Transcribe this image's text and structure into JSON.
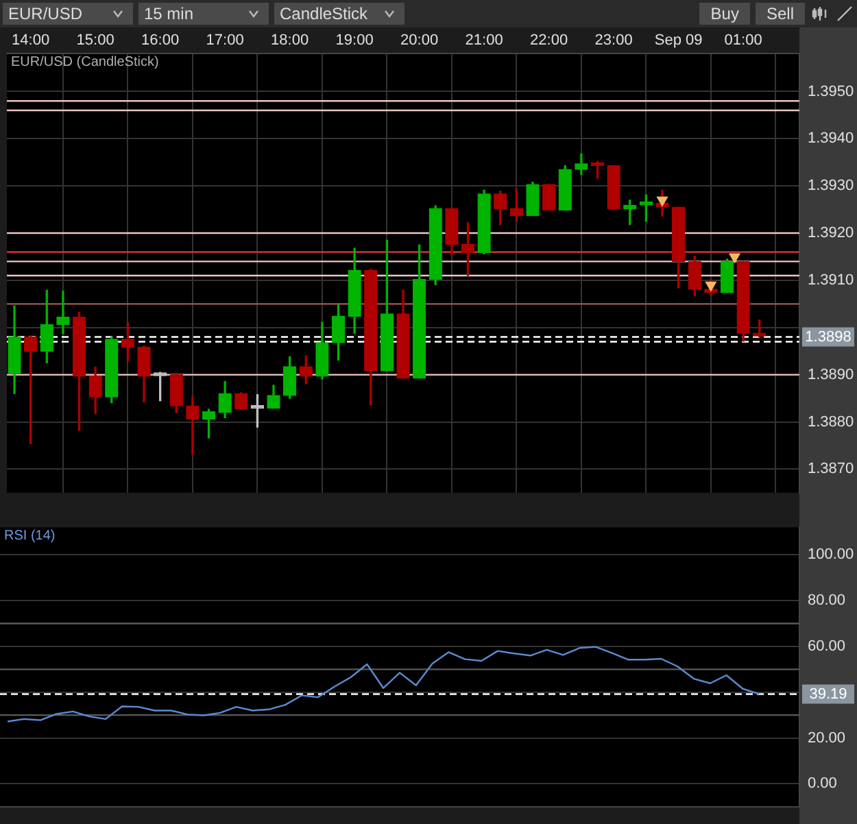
{
  "chart_data": [
    {
      "type": "candlestick",
      "title": "EUR/USD (CandleStick)",
      "annotations": [
        "EUR/USD",
        "15 min",
        "CandleStick",
        "Buy",
        "Sell"
      ],
      "xlim": [
        "--09-08T13:38",
        "--09-09T01:52"
      ],
      "xticks": [
        {
          "value": "--09-08T14:00",
          "label": "14:00"
        },
        {
          "value": "--09-08T15:00",
          "label": "15:00"
        },
        {
          "value": "--09-08T16:00",
          "label": "16:00"
        },
        {
          "value": "--09-08T17:00",
          "label": "17:00"
        },
        {
          "value": "--09-08T18:00",
          "label": "18:00"
        },
        {
          "value": "--09-08T19:00",
          "label": "19:00"
        },
        {
          "value": "--09-08T20:00",
          "label": "20:00"
        },
        {
          "value": "--09-08T21:00",
          "label": "21:00"
        },
        {
          "value": "--09-08T22:00",
          "label": "22:00"
        },
        {
          "value": "--09-08T23:00",
          "label": "23:00"
        },
        {
          "value": "--09-09T00:00",
          "label": "Sep 09"
        },
        {
          "value": "--09-09T01:00",
          "label": "01:00"
        }
      ],
      "ylim": [
        1.3865,
        1.3958
      ],
      "yticks": [
        {
          "value": 1.387,
          "label": "1.3870"
        },
        {
          "value": 1.388,
          "label": "1.3880"
        },
        {
          "value": 1.389,
          "label": "1.3890"
        },
        {
          "value": 1.39,
          "label": null
        },
        {
          "value": 1.391,
          "label": "1.3910"
        },
        {
          "value": 1.392,
          "label": "1.3920"
        },
        {
          "value": 1.393,
          "label": "1.3930"
        },
        {
          "value": 1.394,
          "label": "1.3940"
        },
        {
          "value": 1.395,
          "label": "1.3950"
        }
      ],
      "grid": true,
      "series": [
        {
          "type": "candlestick",
          "x": [
            "--09-08T13:45",
            "--09-08T14:00",
            "--09-08T14:15",
            "--09-08T14:30",
            "--09-08T14:45",
            "--09-08T15:00",
            "--09-08T15:15",
            "--09-08T15:30",
            "--09-08T15:45",
            "--09-08T16:00",
            "--09-08T16:15",
            "--09-08T16:30",
            "--09-08T16:45",
            "--09-08T17:00",
            "--09-08T17:15",
            "--09-08T17:30",
            "--09-08T17:45",
            "--09-08T18:00",
            "--09-08T18:15",
            "--09-08T18:30",
            "--09-08T18:45",
            "--09-08T19:00",
            "--09-08T19:15",
            "--09-08T19:30",
            "--09-08T19:45",
            "--09-08T20:00",
            "--09-08T20:15",
            "--09-08T20:30",
            "--09-08T20:45",
            "--09-08T21:00",
            "--09-08T21:15",
            "--09-08T21:30",
            "--09-08T21:45",
            "--09-08T22:00",
            "--09-08T22:15",
            "--09-08T22:30",
            "--09-08T22:45",
            "--09-08T23:00",
            "--09-08T23:15",
            "--09-08T23:30",
            "--09-08T23:45",
            "--09-09T00:00",
            "--09-09T00:15",
            "--09-09T00:30",
            "--09-09T00:45",
            "--09-09T01:00",
            "--09-09T01:15"
          ],
          "ohlc": [
            [
              1.38903,
              1.39046,
              1.3886,
              1.3898
            ],
            [
              1.3898,
              1.38982,
              1.38754,
              1.3895
            ],
            [
              1.3895,
              1.39079,
              1.38925,
              1.39006
            ],
            [
              1.39006,
              1.39077,
              1.38987,
              1.39022
            ],
            [
              1.39022,
              1.39032,
              1.38782,
              1.38897
            ],
            [
              1.38897,
              1.38916,
              1.38818,
              1.38853
            ],
            [
              1.38853,
              1.3898,
              1.38841,
              1.38975
            ],
            [
              1.38975,
              1.3901,
              1.38928,
              1.38958
            ],
            [
              1.38958,
              1.38961,
              1.38842,
              1.38897
            ],
            [
              1.38898,
              1.38905,
              1.38845,
              1.38898
            ],
            [
              1.389,
              1.38903,
              1.3882,
              1.38834
            ],
            [
              1.38834,
              1.38853,
              1.38731,
              1.38806
            ],
            [
              1.38806,
              1.38827,
              1.38766,
              1.38822
            ],
            [
              1.3882,
              1.38886,
              1.38809,
              1.3886
            ],
            [
              1.3886,
              1.38862,
              1.38827,
              1.38827
            ],
            [
              1.38829,
              1.38858,
              1.38789,
              1.38829
            ],
            [
              1.38829,
              1.38878,
              1.38829,
              1.38856
            ],
            [
              1.38856,
              1.38938,
              1.3885,
              1.38917
            ],
            [
              1.38917,
              1.3894,
              1.38881,
              1.38897
            ],
            [
              1.38897,
              1.39011,
              1.38891,
              1.38968
            ],
            [
              1.38968,
              1.39048,
              1.38931,
              1.39024
            ],
            [
              1.39024,
              1.39168,
              1.38988,
              1.39121
            ],
            [
              1.39121,
              1.39124,
              1.38836,
              1.38908
            ],
            [
              1.38908,
              1.39185,
              1.38908,
              1.39029
            ],
            [
              1.39029,
              1.39079,
              1.38893,
              1.38893
            ],
            [
              1.38893,
              1.39175,
              1.38893,
              1.39102
            ],
            [
              1.39102,
              1.39258,
              1.39091,
              1.39252
            ],
            [
              1.39252,
              1.39252,
              1.39154,
              1.39176
            ],
            [
              1.39176,
              1.39222,
              1.3911,
              1.39159
            ],
            [
              1.39159,
              1.39291,
              1.39156,
              1.39283
            ],
            [
              1.39283,
              1.39289,
              1.39218,
              1.39251
            ],
            [
              1.39252,
              1.39293,
              1.39225,
              1.39237
            ],
            [
              1.39237,
              1.39308,
              1.39237,
              1.39303
            ],
            [
              1.39303,
              1.39303,
              1.39249,
              1.39249
            ],
            [
              1.39249,
              1.39343,
              1.39249,
              1.39335
            ],
            [
              1.39335,
              1.39368,
              1.39324,
              1.39347
            ],
            [
              1.39347,
              1.39352,
              1.39316,
              1.39343
            ],
            [
              1.39343,
              1.39343,
              1.39251,
              1.39251
            ],
            [
              1.39251,
              1.3927,
              1.39218,
              1.39259
            ],
            [
              1.3926,
              1.39281,
              1.39225,
              1.39264
            ],
            [
              1.39263,
              1.39291,
              1.39236,
              1.39255
            ],
            [
              1.39255,
              1.39255,
              1.39084,
              1.3914
            ],
            [
              1.3914,
              1.39151,
              1.39067,
              1.39081
            ],
            [
              1.39081,
              1.39102,
              1.39068,
              1.39074
            ],
            [
              1.39074,
              1.39145,
              1.39074,
              1.3914
            ],
            [
              1.3914,
              1.3914,
              1.38971,
              1.38988
            ],
            [
              1.38988,
              1.39016,
              1.3898,
              1.38982
            ]
          ],
          "colors": [
            "#00b400",
            "#b00000",
            "#00b400",
            "#00b400",
            "#b00000",
            "#b00000",
            "#00b400",
            "#b00000",
            "#b00000",
            "#c0c0c0",
            "#b00000",
            "#b00000",
            "#00b400",
            "#00b400",
            "#b00000",
            "#c0c0c0",
            "#00b400",
            "#00b400",
            "#b00000",
            "#00b400",
            "#00b400",
            "#00b400",
            "#b00000",
            "#00b400",
            "#b00000",
            "#00b400",
            "#00b400",
            "#b00000",
            "#b00000",
            "#00b400",
            "#b00000",
            "#b00000",
            "#00b400",
            "#b00000",
            "#00b400",
            "#00b400",
            "#b00000",
            "#b00000",
            "#00b400",
            "#00b400",
            "#b00000",
            "#b00000",
            "#b00000",
            "#b00000",
            "#00b400",
            "#b00000",
            "#b00000"
          ]
        },
        {
          "type": "scatter",
          "color": "#f5b860",
          "marker": "triangle",
          "x": [
            "--09-08T23:45",
            "--09-09T00:30",
            "--09-09T00:52"
          ],
          "values": [
            1.3927,
            1.3909,
            1.3915
          ]
        }
      ],
      "ref_lines": [
        {
          "axis": "y",
          "value": 1.3948,
          "color": "#f0c4c4"
        },
        {
          "axis": "y",
          "value": 1.3946,
          "color": "#f0c4c4"
        },
        {
          "axis": "y",
          "value": 1.392,
          "color": "#f0c4c4"
        },
        {
          "axis": "y",
          "value": 1.3916,
          "color": "#e03a3a"
        },
        {
          "axis": "y",
          "value": 1.3914,
          "color": "#f0c4c4"
        },
        {
          "axis": "y",
          "value": 1.3911,
          "color": "#f0c4c4"
        },
        {
          "axis": "y",
          "value": 1.3905,
          "color": "#a05a5a"
        },
        {
          "axis": "y",
          "value": 1.389,
          "color": "#f0c4c4"
        },
        {
          "axis": "y",
          "value": 1.3898,
          "label": "1.3898",
          "color": "#ffffff",
          "line_style": "dashed"
        },
        {
          "axis": "y",
          "value": 1.3897,
          "color": "#ffffff",
          "line_style": "dashed"
        }
      ]
    },
    {
      "type": "line",
      "title": "RSI (14)",
      "xlim": [
        "--09-08T13:38",
        "--09-09T01:52"
      ],
      "tick_labels": "y",
      "grid": true,
      "ylim": [
        -10,
        112
      ],
      "yticks": [
        {
          "value": 0,
          "label": "0.00"
        },
        {
          "value": 20,
          "label": "20.00"
        },
        {
          "value": 40,
          "label": null
        },
        {
          "value": 60,
          "label": "60.00"
        },
        {
          "value": 80,
          "label": "80.00"
        },
        {
          "value": 100,
          "label": "100.00"
        }
      ],
      "series": [
        {
          "type": "line",
          "color": "#5b8bd0",
          "x": [
            "--09-08T13:45",
            "--09-08T14:00",
            "--09-08T14:15",
            "--09-08T14:30",
            "--09-08T14:45",
            "--09-08T15:00",
            "--09-08T15:15",
            "--09-08T15:30",
            "--09-08T15:45",
            "--09-08T16:00",
            "--09-08T16:15",
            "--09-08T16:30",
            "--09-08T16:45",
            "--09-08T17:00",
            "--09-08T17:15",
            "--09-08T17:30",
            "--09-08T17:45",
            "--09-08T18:00",
            "--09-08T18:15",
            "--09-08T18:30",
            "--09-08T18:45",
            "--09-08T19:00",
            "--09-08T19:15",
            "--09-08T19:30",
            "--09-08T19:45",
            "--09-08T20:00",
            "--09-08T20:15",
            "--09-08T20:30",
            "--09-08T20:45",
            "--09-08T21:00",
            "--09-08T21:15",
            "--09-08T21:30",
            "--09-08T21:45",
            "--09-08T22:00",
            "--09-08T22:15",
            "--09-08T22:30",
            "--09-08T22:45",
            "--09-08T23:00",
            "--09-08T23:15",
            "--09-08T23:30",
            "--09-08T23:45",
            "--09-09T00:00",
            "--09-09T00:15",
            "--09-09T00:30",
            "--09-09T00:45",
            "--09-09T01:00",
            "--09-09T01:15"
          ],
          "values": [
            27.2,
            28.3,
            27.8,
            30.5,
            31.6,
            29.4,
            28.3,
            33.8,
            33.6,
            32.0,
            32.0,
            30.3,
            29.9,
            31.0,
            33.6,
            32.0,
            32.5,
            34.5,
            38.6,
            37.8,
            42.4,
            46.5,
            52.2,
            41.8,
            48.5,
            43.0,
            52.5,
            57.5,
            54.4,
            53.7,
            58.0,
            56.9,
            56.0,
            58.5,
            56.3,
            59.3,
            59.8,
            57.1,
            54.2,
            54.2,
            54.6,
            51.3,
            45.9,
            43.9,
            47.4,
            41.5,
            39.19
          ]
        }
      ],
      "ref_lines": [
        {
          "axis": "y",
          "value": 30,
          "color": "#5a5a5a"
        },
        {
          "axis": "y",
          "value": 50,
          "color": "#5a5a5a"
        },
        {
          "axis": "y",
          "value": 70,
          "color": "#5a5a5a"
        },
        {
          "axis": "y",
          "value": 39.19,
          "label": "39.19",
          "color": "#ffffff",
          "line_style": "dashed"
        }
      ]
    }
  ]
}
